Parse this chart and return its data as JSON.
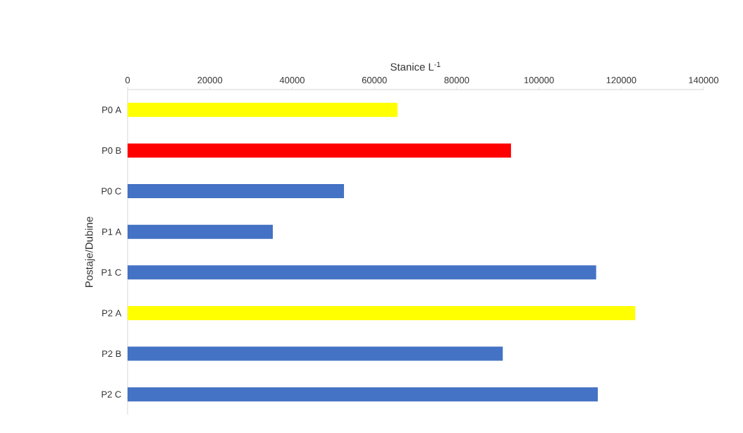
{
  "chart_data": {
    "type": "bar",
    "orientation": "horizontal",
    "xlabel": "Stanice L$^{-1}$",
    "ylabel": "Postaje/Dubine",
    "categories": [
      "P0 A",
      "P0 B",
      "P0 C",
      "P1 A",
      "P1 C",
      "P2 A",
      "P2 B",
      "P2 C"
    ],
    "values": [
      65600,
      93200,
      52600,
      35300,
      113900,
      123400,
      91200,
      114300
    ],
    "colors": [
      "#ffff00",
      "#ff0000",
      "#4472c4",
      "#4472c4",
      "#4472c4",
      "#ffff00",
      "#4472c4",
      "#4472c4"
    ],
    "xlim": [
      0,
      140000
    ],
    "xticks": [
      0,
      20000,
      40000,
      60000,
      80000,
      100000,
      120000,
      140000
    ],
    "grid": false
  }
}
